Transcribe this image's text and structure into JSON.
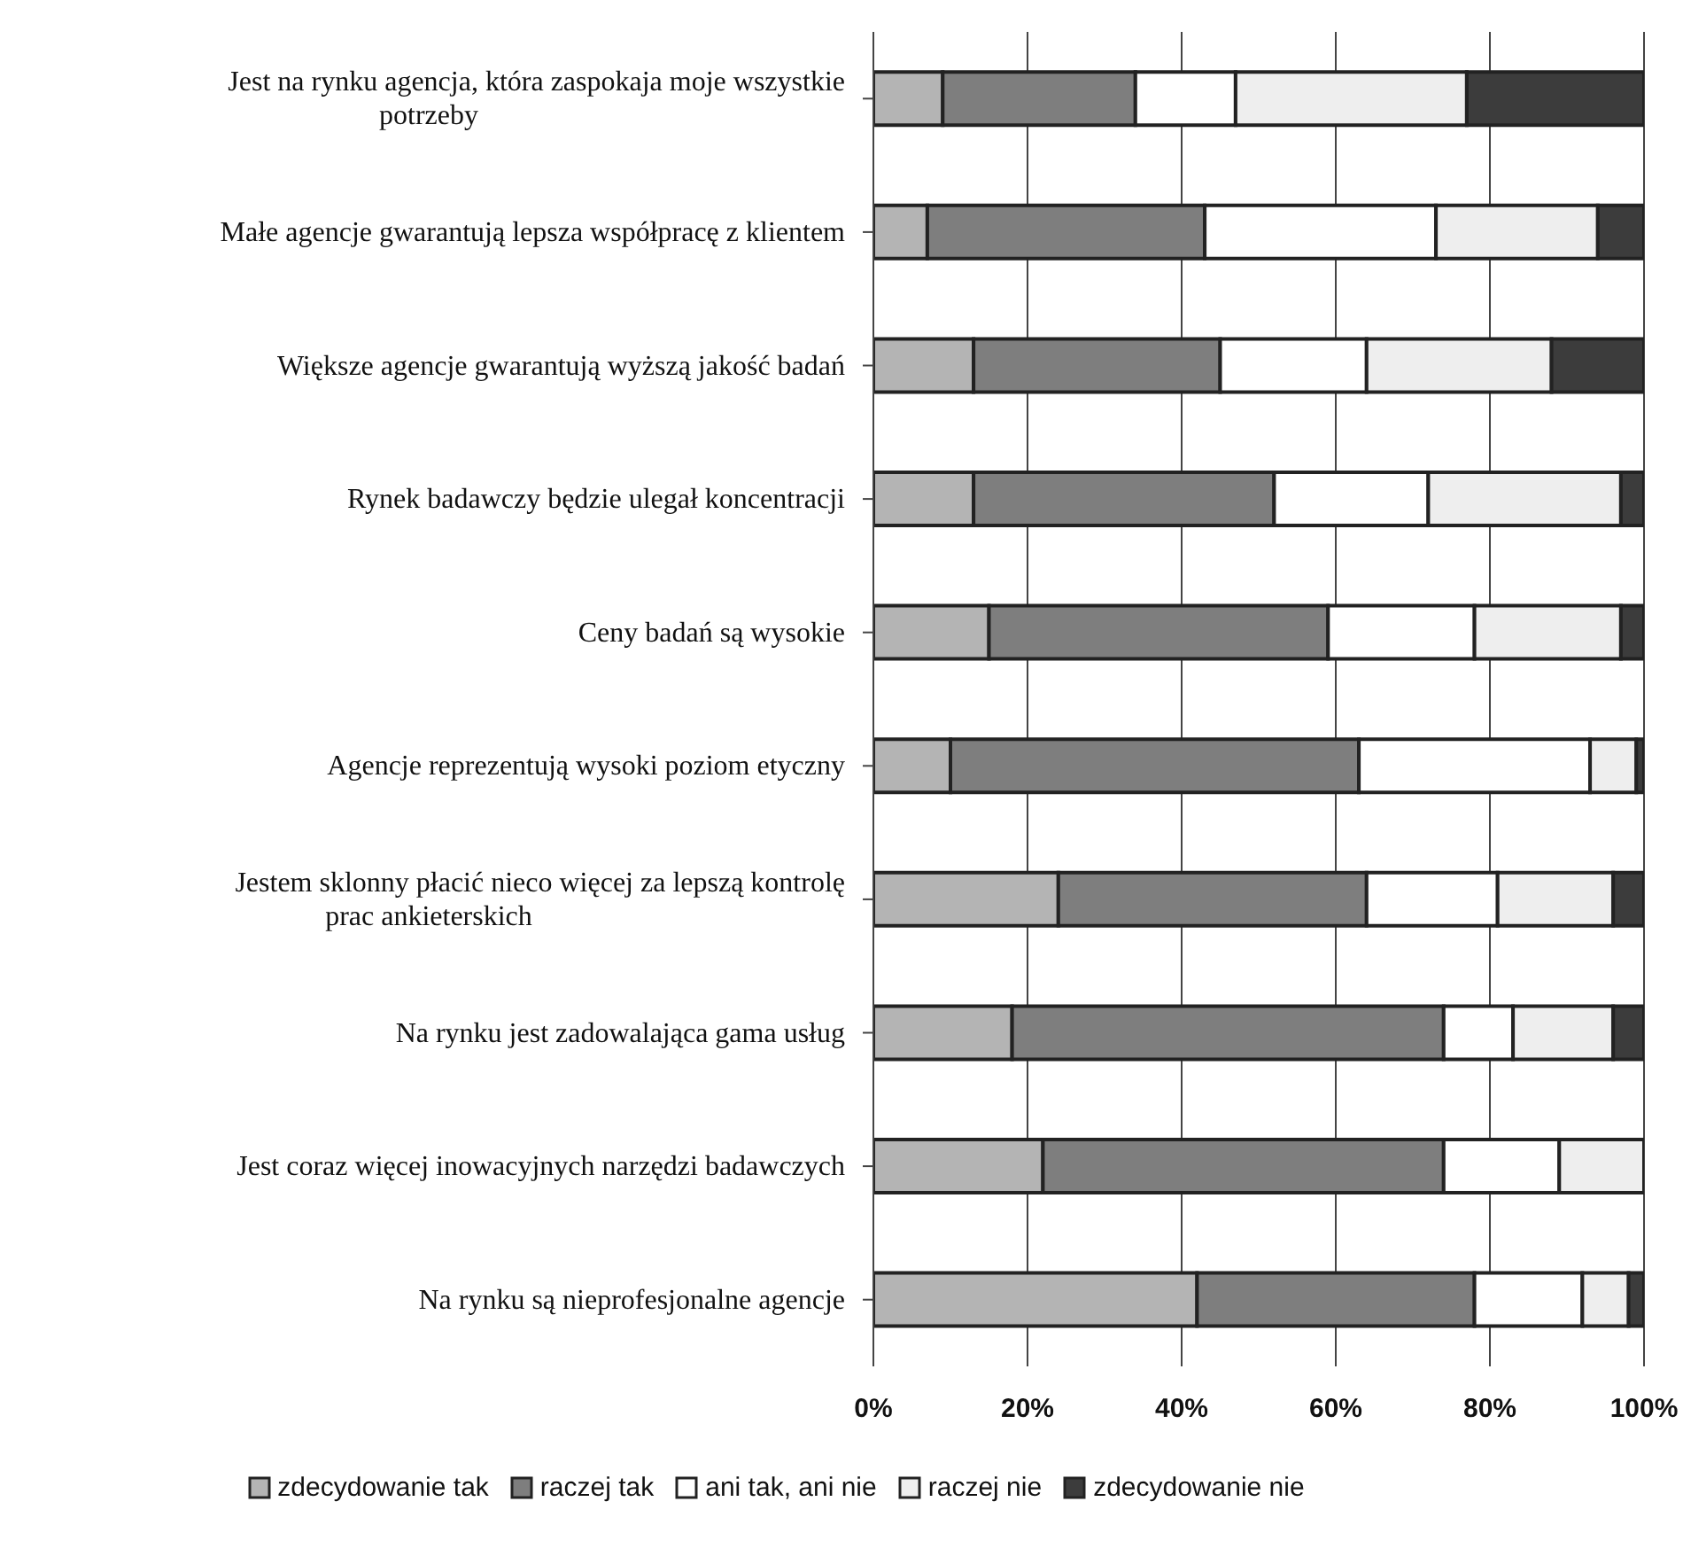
{
  "chart_data": {
    "type": "bar",
    "orientation": "horizontal",
    "stacked": true,
    "categories": [
      "Jest na rynku agencja, która zaspokaja moje wszystkie potrzeby",
      "Małe agencje gwarantują lepsza współpracę z klientem",
      "Większe agencje gwarantują wyższą jakość badań",
      "Rynek badawczy będzie ulegał koncentracji",
      "Ceny badań są wysokie",
      "Agencje reprezentują wysoki poziom etyczny",
      "Jestem sklonny płacić nieco więcej za lepszą kontrolę prac ankieterskich",
      "Na rynku jest zadowalająca gama usług",
      "Jest coraz więcej inowacyjnych narzędzi badawczych",
      "Na rynku są nieprofesjonalne agencje"
    ],
    "series": [
      {
        "name": "zdecydowanie tak",
        "color": "#b4b4b4",
        "values": [
          9,
          7,
          13,
          13,
          15,
          10,
          24,
          18,
          22,
          42
        ]
      },
      {
        "name": "raczej tak",
        "color": "#7e7e7e",
        "values": [
          25,
          36,
          32,
          39,
          44,
          53,
          40,
          56,
          52,
          36
        ]
      },
      {
        "name": "ani tak, ani nie",
        "color": "#ffffff",
        "values": [
          13,
          30,
          19,
          20,
          19,
          30,
          17,
          9,
          15,
          14
        ]
      },
      {
        "name": "raczej nie",
        "color": "#eeeeee",
        "values": [
          30,
          21,
          24,
          25,
          19,
          6,
          15,
          13,
          11,
          6
        ]
      },
      {
        "name": "zdecydowanie nie",
        "color": "#3c3c3c",
        "values": [
          23,
          6,
          12,
          3,
          3,
          1,
          4,
          4,
          0,
          2
        ]
      }
    ],
    "xlim": [
      0,
      100
    ],
    "xticks": [
      {
        "value": 0,
        "label": "0%"
      },
      {
        "value": 20,
        "label": "20%"
      },
      {
        "value": 40,
        "label": "40%"
      },
      {
        "value": 60,
        "label": "60%"
      },
      {
        "value": 80,
        "label": "80%"
      },
      {
        "value": 100,
        "label": "100%"
      }
    ],
    "grid": "x",
    "legend": "bottom"
  }
}
